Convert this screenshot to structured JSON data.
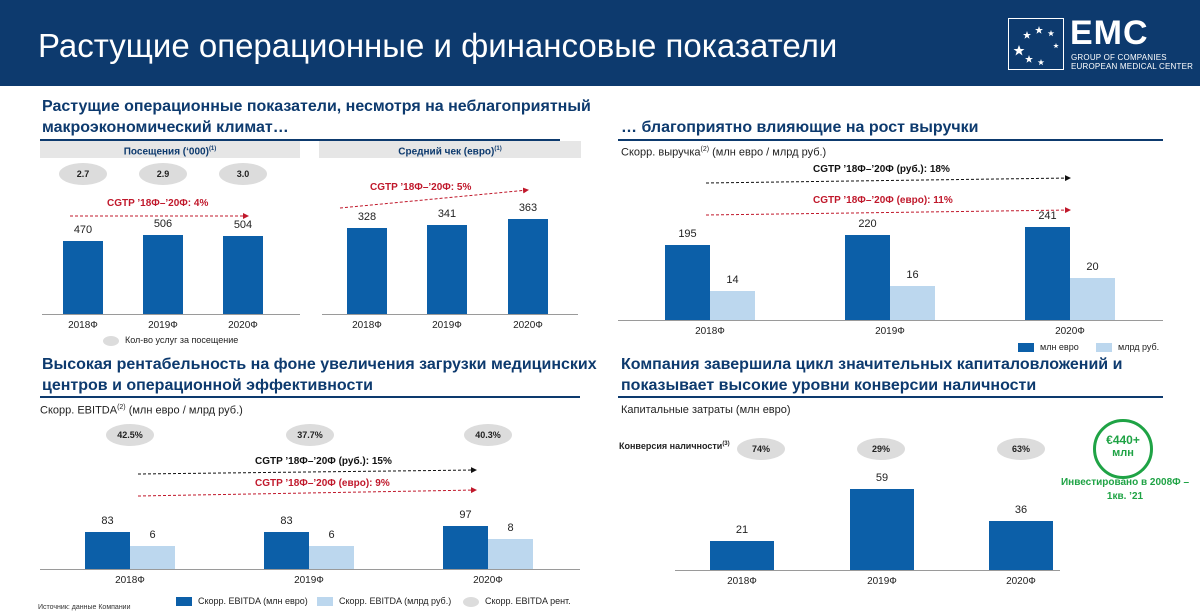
{
  "header": {
    "title": "Растущие операционные и финансовые показатели",
    "logo_text": "EMC",
    "logo_sub1": "GROUP OF COMPANIES",
    "logo_sub2": "EUROPEAN MEDICAL CENTER"
  },
  "sections": {
    "operating_title": "Растущие операционные показатели, несмотря на неблагоприятный макроэкономический климат…",
    "revenue_title": "… благоприятно влияющие на рост выручки",
    "ebitda_title": "Высокая рентабельность на фоне увеличения загрузки медицинских центров и операционной эффективности",
    "capex_title": "Компания завершила цикл значительных капиталовложений и показывает высокие уровни конверсии наличности"
  },
  "source_note": "Источник: данные Компании",
  "chart_data": [
    {
      "type": "bar",
      "title": "Посещения (‘000)",
      "title_sup": "(1)",
      "categories": [
        "2018Ф",
        "2019Ф",
        "2020Ф"
      ],
      "series": [
        {
          "values": [
            470,
            506,
            504
          ]
        }
      ],
      "value_labels": [
        "470",
        "506",
        "504"
      ],
      "services_per_visit": [
        "2.7",
        "2.9",
        "3.0"
      ],
      "cagr": "CGTP ’18Ф–’20Ф: 4%",
      "legend": "Кол-во услуг за посещение",
      "color": "#0c5fa8"
    },
    {
      "type": "bar",
      "title": "Средний чек (евро)",
      "title_sup": "(1)",
      "categories": [
        "2018Ф",
        "2019Ф",
        "2020Ф"
      ],
      "series": [
        {
          "values": [
            328,
            341,
            363
          ]
        }
      ],
      "value_labels": [
        "328",
        "341",
        "363"
      ],
      "cagr": "CGTP ’18Ф–’20Ф: 5%",
      "color": "#0c5fa8"
    },
    {
      "type": "bar",
      "title": "Скорр. выручка",
      "title_sup": "(2)",
      "title_units": " (млн евро / млрд руб.)",
      "categories": [
        "2018Ф",
        "2019Ф",
        "2020Ф"
      ],
      "series": [
        {
          "name": "млн евро",
          "values": [
            195,
            220,
            241
          ],
          "labels": [
            "195",
            "220",
            "241"
          ]
        },
        {
          "name": "млрд руб.",
          "values": [
            14,
            16,
            20
          ],
          "labels": [
            "14",
            "16",
            "20"
          ]
        }
      ],
      "cagr_rub": "CGTP ’18Ф–’20Ф (руб.): 18%",
      "cagr_eur": "CGTP ’18Ф–’20Ф (евро): 11%",
      "colors": [
        "#0c5fa8",
        "#bcd7ee"
      ]
    },
    {
      "type": "bar",
      "title": "Скорр. EBITDA",
      "title_sup": "(2)",
      "title_units": " (млн евро / млрд руб.)",
      "categories": [
        "2018Ф",
        "2019Ф",
        "2020Ф"
      ],
      "series": [
        {
          "name": "Скорр. EBITDA (млн евро)",
          "values": [
            83,
            83,
            97
          ],
          "labels": [
            "83",
            "83",
            "97"
          ]
        },
        {
          "name": "Скорр. EBITDA (млрд руб.)",
          "values": [
            6,
            6,
            8
          ],
          "labels": [
            "6",
            "6",
            "8"
          ]
        }
      ],
      "margins": [
        "42.5%",
        "37.7%",
        "40.3%"
      ],
      "margin_legend": "Скорр. EBITDA рент.",
      "cagr_rub": "CGTP ’18Ф–’20Ф (руб.): 15%",
      "cagr_eur": "CGTP ’18Ф–’20Ф (евро): 9%",
      "colors": [
        "#0c5fa8",
        "#bcd7ee"
      ]
    },
    {
      "type": "bar",
      "title": "Капитальные затраты (млн евро)",
      "categories": [
        "2018Ф",
        "2019Ф",
        "2020Ф"
      ],
      "series": [
        {
          "values": [
            21,
            59,
            36
          ]
        }
      ],
      "value_labels": [
        "21",
        "59",
        "36"
      ],
      "conversion_label": "Конверсия наличности",
      "conversion_sup": "(3)",
      "conversion": [
        "74%",
        "29%",
        "63%"
      ],
      "investment_amount": "€440+",
      "investment_unit": "млн",
      "investment_note": "Инвестировано в 2008Ф – 1кв. ’21",
      "color": "#0c5fa8"
    }
  ]
}
